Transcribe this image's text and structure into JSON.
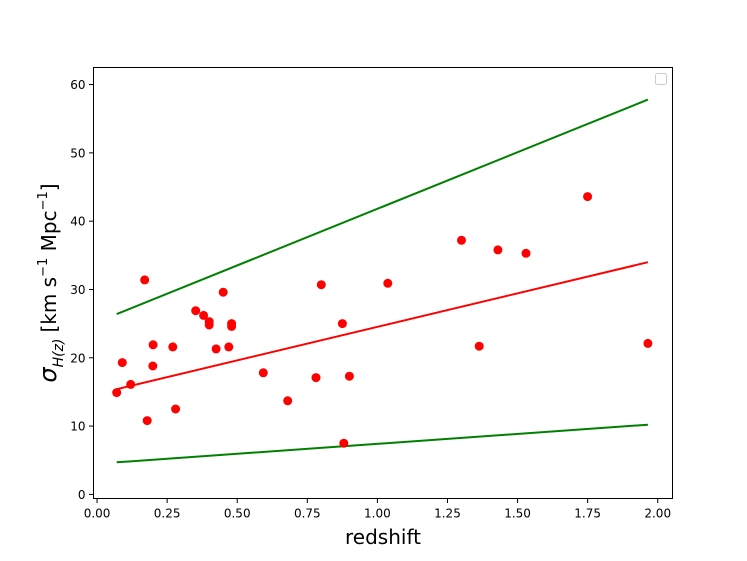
{
  "chart_data": {
    "type": "scatter",
    "xlabel": "redshift",
    "ylabel": {
      "sigma": "σ",
      "sub": "H(z)",
      "pre": "[km s",
      "exp1": "−1",
      "mid": " Mpc",
      "exp2": "−1",
      "post": "]"
    },
    "xlim": [
      -0.0127,
      2.0527
    ],
    "ylim": [
      -0.6,
      62.5
    ],
    "xticks": [
      0.0,
      0.25,
      0.5,
      0.75,
      1.0,
      1.25,
      1.5,
      1.75,
      2.0
    ],
    "xtick_labels": [
      "0.00",
      "0.25",
      "0.50",
      "0.75",
      "1.00",
      "1.25",
      "1.50",
      "1.75",
      "2.00"
    ],
    "yticks": [
      0,
      10,
      20,
      30,
      40,
      50,
      60
    ],
    "ytick_labels": [
      "0",
      "10",
      "20",
      "30",
      "40",
      "50",
      "60"
    ],
    "grid": false,
    "legend": {
      "placement": "top-right",
      "entries": []
    },
    "colors": {
      "points": "#ff0000",
      "fit": "#ff0000",
      "bounds": "#008000"
    },
    "points": {
      "x": [
        0.07,
        0.09,
        0.12,
        0.17,
        0.179,
        0.199,
        0.2,
        0.27,
        0.28,
        0.352,
        0.38,
        0.4,
        0.4,
        0.4247,
        0.45,
        0.47,
        0.48,
        0.48,
        0.593,
        0.68,
        0.781,
        0.8,
        0.875,
        0.88,
        0.9,
        1.037,
        1.3,
        1.363,
        1.43,
        1.53,
        1.75,
        1.965
      ],
      "y": [
        14.9,
        19.3,
        16.1,
        31.4,
        10.8,
        18.8,
        21.9,
        21.6,
        12.5,
        26.9,
        26.2,
        24.8,
        25.3,
        21.3,
        29.6,
        21.6,
        24.6,
        25.0,
        17.8,
        13.7,
        17.1,
        30.7,
        25.0,
        7.5,
        17.3,
        30.9,
        37.2,
        21.7,
        35.8,
        35.3,
        43.6,
        22.1
      ]
    },
    "lines": [
      {
        "role": "fit",
        "x": [
          0.07,
          1.965
        ],
        "y": [
          15.4,
          34.0
        ]
      },
      {
        "role": "upper",
        "x": [
          0.07,
          1.965
        ],
        "y": [
          26.4,
          57.8
        ]
      },
      {
        "role": "lower",
        "x": [
          0.07,
          1.965
        ],
        "y": [
          4.7,
          10.2
        ]
      }
    ]
  }
}
